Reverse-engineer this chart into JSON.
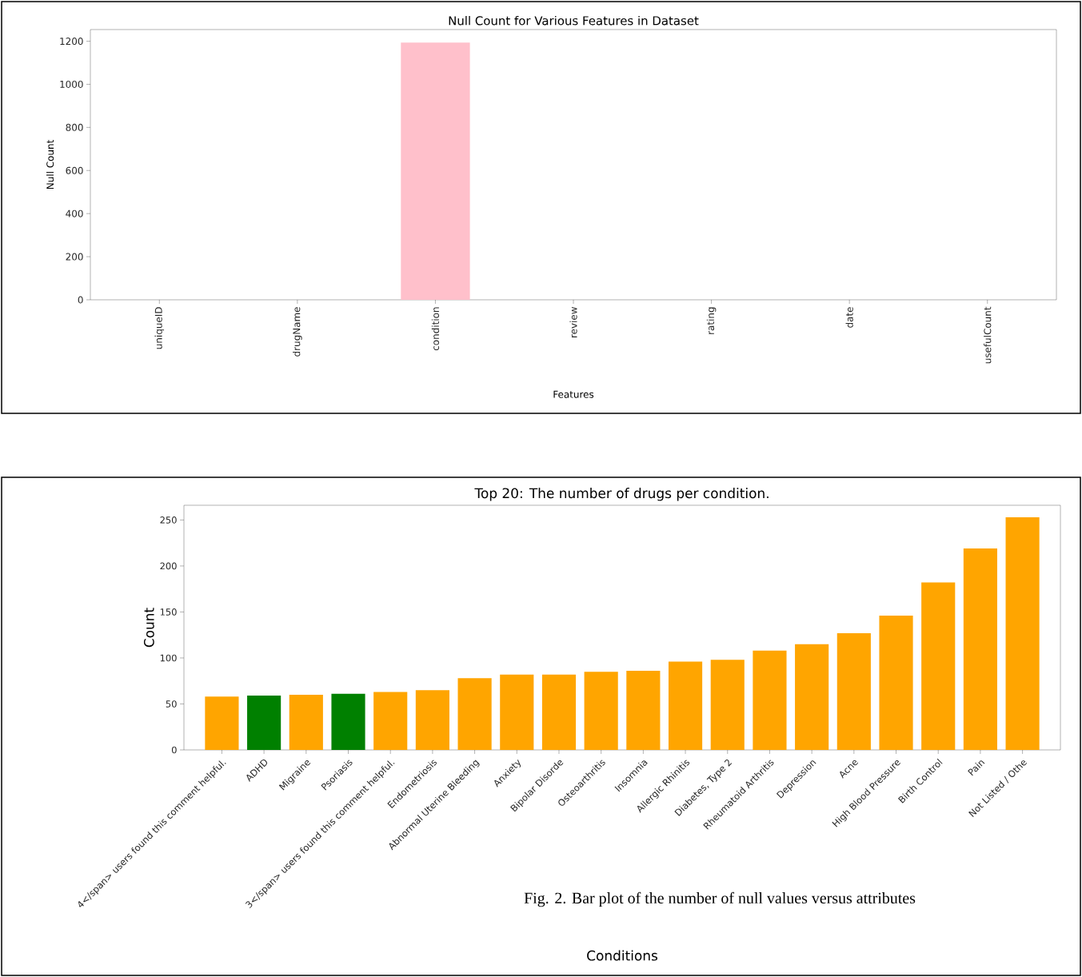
{
  "chart_data": [
    {
      "type": "bar",
      "title": "Null Count for Various Features in Dataset",
      "xlabel": "Features",
      "ylabel": "Null Count",
      "categories": [
        "uniqueID",
        "drugName",
        "condition",
        "review",
        "rating",
        "date",
        "usefulCount"
      ],
      "values": [
        0,
        0,
        1194,
        0,
        0,
        0,
        0
      ],
      "colors": [
        "#ffc0cb",
        "#ffc0cb",
        "#ffc0cb",
        "#ffc0cb",
        "#ffc0cb",
        "#ffc0cb",
        "#ffc0cb"
      ],
      "ylim": [
        0,
        1254
      ],
      "yticks": [
        0,
        200,
        400,
        600,
        800,
        1000,
        1200
      ]
    },
    {
      "type": "bar",
      "title": "Top 20: The number of drugs per condition.",
      "xlabel": "Conditions",
      "ylabel": "Count",
      "categories": [
        "4</span> users found this comment helpful.",
        "ADHD",
        "Migraine",
        "Psoriasis",
        "3</span> users found this comment helpful.",
        "Endometriosis",
        "Abnormal Uterine Bleeding",
        "Anxiety",
        "Bipolar Disorde",
        "Osteoarthritis",
        "Insomnia",
        "Allergic Rhinitis",
        "Diabetes, Type 2",
        "Rheumatoid Arthritis",
        "Depression",
        "Acne",
        "High Blood Pressure",
        "Birth Control",
        "Pain",
        "Not Listed / Othe"
      ],
      "values": [
        58,
        59,
        60,
        61,
        63,
        65,
        78,
        82,
        82,
        85,
        86,
        96,
        98,
        108,
        115,
        127,
        146,
        182,
        219,
        253
      ],
      "colors": [
        "#ffa500",
        "#008000",
        "#ffa500",
        "#008000",
        "#ffa500",
        "#ffa500",
        "#ffa500",
        "#ffa500",
        "#ffa500",
        "#ffa500",
        "#ffa500",
        "#ffa500",
        "#ffa500",
        "#ffa500",
        "#ffa500",
        "#ffa500",
        "#ffa500",
        "#ffa500",
        "#ffa500",
        "#ffa500"
      ],
      "ylim": [
        0,
        266
      ],
      "yticks": [
        0,
        50,
        100,
        150,
        200,
        250
      ],
      "annotations": [
        "Fig. 2. Bar plot of the number of null values versus attributes"
      ]
    }
  ]
}
